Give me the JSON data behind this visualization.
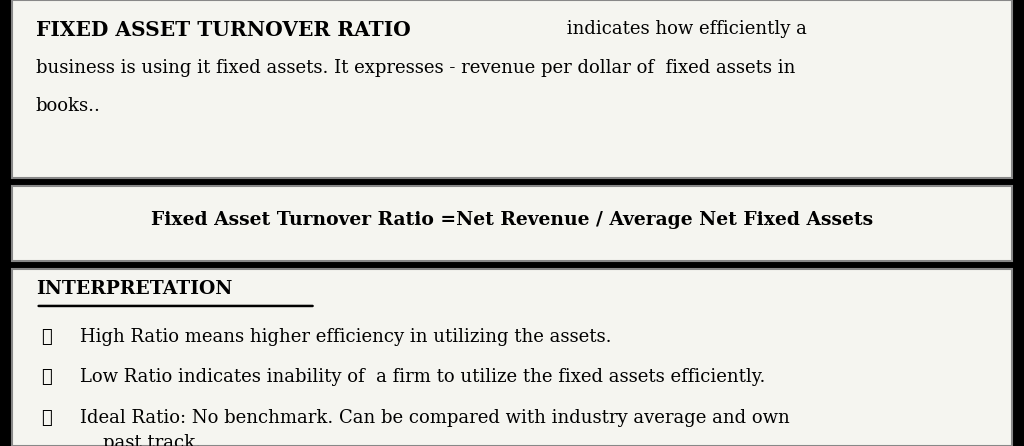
{
  "bg_color": "#000000",
  "box_color": "#f5f5f0",
  "title_bold_text": "FIXED ASSET TURNOVER RATIO",
  "formula_text": "Fixed Asset Turnover Ratio =Net Revenue / Average Net Fixed Assets",
  "interp_heading": "INTERPRETATION",
  "bullet_items": [
    "High Ratio means higher efficiency in utilizing the assets.",
    "Low Ratio indicates inability of  a firm to utilize the fixed assets efficiently.",
    "Ideal Ratio: No benchmark. Can be compared with industry average and own\n    past track."
  ],
  "checkmark": "✓",
  "font_family": "serif"
}
